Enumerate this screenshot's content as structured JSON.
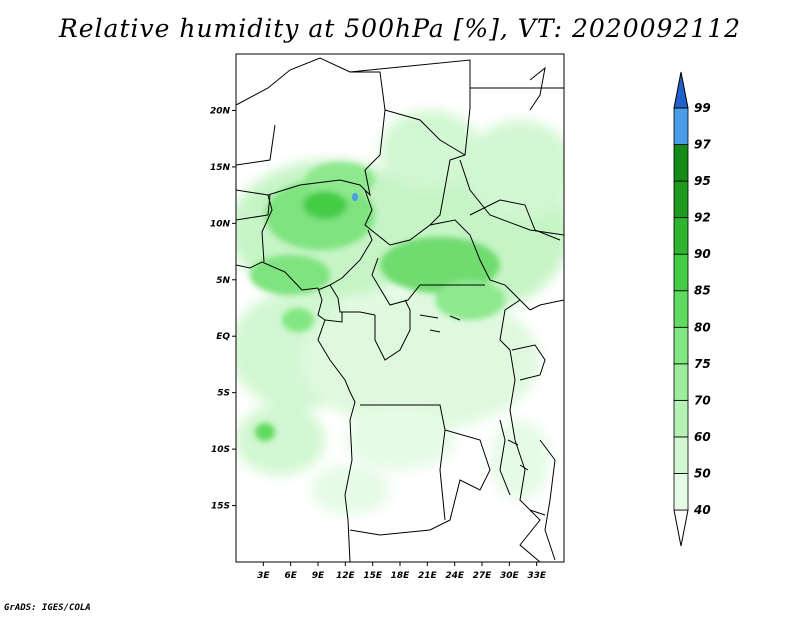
{
  "title": "Relative humidity at 500hPa [%], VT: 2020092112",
  "credit": "GrADS: IGES/COLA",
  "map": {
    "lon_range": [
      0,
      36
    ],
    "lat_range": [
      -20,
      25
    ],
    "lat_ticks": [
      {
        "label": "20N",
        "value": 20
      },
      {
        "label": "15N",
        "value": 15
      },
      {
        "label": "10N",
        "value": 10
      },
      {
        "label": "5N",
        "value": 5
      },
      {
        "label": "EQ",
        "value": 0
      },
      {
        "label": "5S",
        "value": -5
      },
      {
        "label": "10S",
        "value": -10
      },
      {
        "label": "15S",
        "value": -15
      }
    ],
    "lon_ticks": [
      {
        "label": "3E",
        "value": 3
      },
      {
        "label": "6E",
        "value": 6
      },
      {
        "label": "9E",
        "value": 9
      },
      {
        "label": "12E",
        "value": 12
      },
      {
        "label": "15E",
        "value": 15
      },
      {
        "label": "18E",
        "value": 18
      },
      {
        "label": "21E",
        "value": 21
      },
      {
        "label": "24E",
        "value": 24
      },
      {
        "label": "27E",
        "value": 27
      },
      {
        "label": "30E",
        "value": 30
      },
      {
        "label": "33E",
        "value": 33
      }
    ]
  },
  "colorbar": {
    "levels": [
      {
        "label": "40",
        "color": "#e6fbe6"
      },
      {
        "label": "50",
        "color": "#d2f7d2"
      },
      {
        "label": "60",
        "color": "#b6f2b6"
      },
      {
        "label": "70",
        "color": "#9ded9d"
      },
      {
        "label": "75",
        "color": "#82e682"
      },
      {
        "label": "80",
        "color": "#5fdb5f"
      },
      {
        "label": "85",
        "color": "#44cc44"
      },
      {
        "label": "90",
        "color": "#2fb42f"
      },
      {
        "label": "92",
        "color": "#1e9a1e"
      },
      {
        "label": "95",
        "color": "#168a16"
      },
      {
        "label": "97",
        "color": "#4a9be8"
      },
      {
        "label": "99",
        "color": "#2a6fd6"
      }
    ],
    "top_color": "#2060c8"
  }
}
